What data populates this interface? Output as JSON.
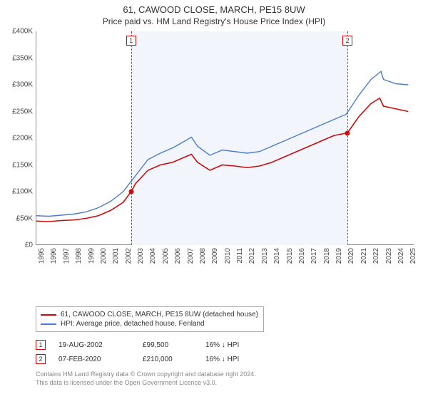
{
  "title": "61, CAWOOD CLOSE, MARCH, PE15 8UW",
  "subtitle": "Price paid vs. HM Land Registry's House Price Index (HPI)",
  "chart": {
    "type": "line",
    "background_color": "#ffffff",
    "shaded_band_color": "#f2f6fc",
    "axis_color": "#888888",
    "x_range": [
      1995,
      2025.5
    ],
    "y_range": [
      0,
      400000
    ],
    "y_ticks": [
      0,
      50000,
      100000,
      150000,
      200000,
      250000,
      300000,
      350000,
      400000
    ],
    "y_tick_labels": [
      "£0",
      "£50K",
      "£100K",
      "£150K",
      "£200K",
      "£250K",
      "£300K",
      "£350K",
      "£400K"
    ],
    "x_ticks": [
      1995,
      1996,
      1997,
      1998,
      1999,
      2000,
      2001,
      2002,
      2003,
      2004,
      2005,
      2006,
      2007,
      2008,
      2009,
      2010,
      2011,
      2012,
      2013,
      2014,
      2015,
      2016,
      2017,
      2018,
      2019,
      2020,
      2021,
      2022,
      2023,
      2024,
      2025
    ],
    "shaded_band": {
      "x_start": 2002.63,
      "x_end": 2020.1
    },
    "series": [
      {
        "name": "61, CAWOOD CLOSE, MARCH, PE15 8UW (detached house)",
        "color": "#cc0b0b",
        "line_width": 1.6,
        "points": [
          [
            1995,
            45000
          ],
          [
            1996,
            44000
          ],
          [
            1997,
            46000
          ],
          [
            1998,
            47000
          ],
          [
            1999,
            50000
          ],
          [
            2000,
            55000
          ],
          [
            2001,
            65000
          ],
          [
            2002,
            80000
          ],
          [
            2002.63,
            99500
          ],
          [
            2003,
            115000
          ],
          [
            2004,
            140000
          ],
          [
            2005,
            150000
          ],
          [
            2006,
            155000
          ],
          [
            2007,
            165000
          ],
          [
            2007.5,
            170000
          ],
          [
            2008,
            155000
          ],
          [
            2009,
            140000
          ],
          [
            2010,
            150000
          ],
          [
            2011,
            148000
          ],
          [
            2012,
            145000
          ],
          [
            2013,
            148000
          ],
          [
            2014,
            155000
          ],
          [
            2015,
            165000
          ],
          [
            2016,
            175000
          ],
          [
            2017,
            185000
          ],
          [
            2018,
            195000
          ],
          [
            2019,
            205000
          ],
          [
            2020.1,
            210000
          ],
          [
            2021,
            240000
          ],
          [
            2022,
            265000
          ],
          [
            2022.7,
            275000
          ],
          [
            2023,
            260000
          ],
          [
            2024,
            255000
          ],
          [
            2025,
            250000
          ]
        ]
      },
      {
        "name": "HPI: Average price, detached house, Fenland",
        "color": "#4a7bd0",
        "line_width": 1.4,
        "points": [
          [
            1995,
            55000
          ],
          [
            1996,
            54000
          ],
          [
            1997,
            56000
          ],
          [
            1998,
            58000
          ],
          [
            1999,
            62000
          ],
          [
            2000,
            70000
          ],
          [
            2001,
            82000
          ],
          [
            2002,
            100000
          ],
          [
            2003,
            130000
          ],
          [
            2004,
            160000
          ],
          [
            2005,
            172000
          ],
          [
            2006,
            182000
          ],
          [
            2007,
            195000
          ],
          [
            2007.5,
            202000
          ],
          [
            2008,
            185000
          ],
          [
            2009,
            168000
          ],
          [
            2010,
            178000
          ],
          [
            2011,
            175000
          ],
          [
            2012,
            172000
          ],
          [
            2013,
            175000
          ],
          [
            2014,
            185000
          ],
          [
            2015,
            195000
          ],
          [
            2016,
            205000
          ],
          [
            2017,
            215000
          ],
          [
            2018,
            225000
          ],
          [
            2019,
            235000
          ],
          [
            2020,
            245000
          ],
          [
            2021,
            280000
          ],
          [
            2022,
            310000
          ],
          [
            2022.8,
            325000
          ],
          [
            2023,
            310000
          ],
          [
            2024,
            302000
          ],
          [
            2025,
            300000
          ]
        ]
      }
    ],
    "sale_markers": [
      {
        "n": 1,
        "x": 2002.63,
        "y": 99500,
        "color": "#cc0b0b"
      },
      {
        "n": 2,
        "x": 2020.1,
        "y": 210000,
        "color": "#cc0b0b"
      }
    ],
    "marker_box": {
      "fill": "#ffffff",
      "border_width": 1,
      "font_size": 9
    }
  },
  "legend": {
    "items": [
      {
        "color": "#cc0b0b",
        "label": "61, CAWOOD CLOSE, MARCH, PE15 8UW (detached house)"
      },
      {
        "color": "#4a7bd0",
        "label": "HPI: Average price, detached house, Fenland"
      }
    ]
  },
  "sales": [
    {
      "n": 1,
      "color": "#cc0b0b",
      "date": "19-AUG-2002",
      "price": "£99,500",
      "diff": "16% ↓ HPI"
    },
    {
      "n": 2,
      "color": "#cc0b0b",
      "date": "07-FEB-2020",
      "price": "£210,000",
      "diff": "16% ↓ HPI"
    }
  ],
  "attribution": {
    "line1": "Contains HM Land Registry data © Crown copyright and database right 2024.",
    "line2": "This data is licensed under the Open Government Licence v3.0."
  }
}
